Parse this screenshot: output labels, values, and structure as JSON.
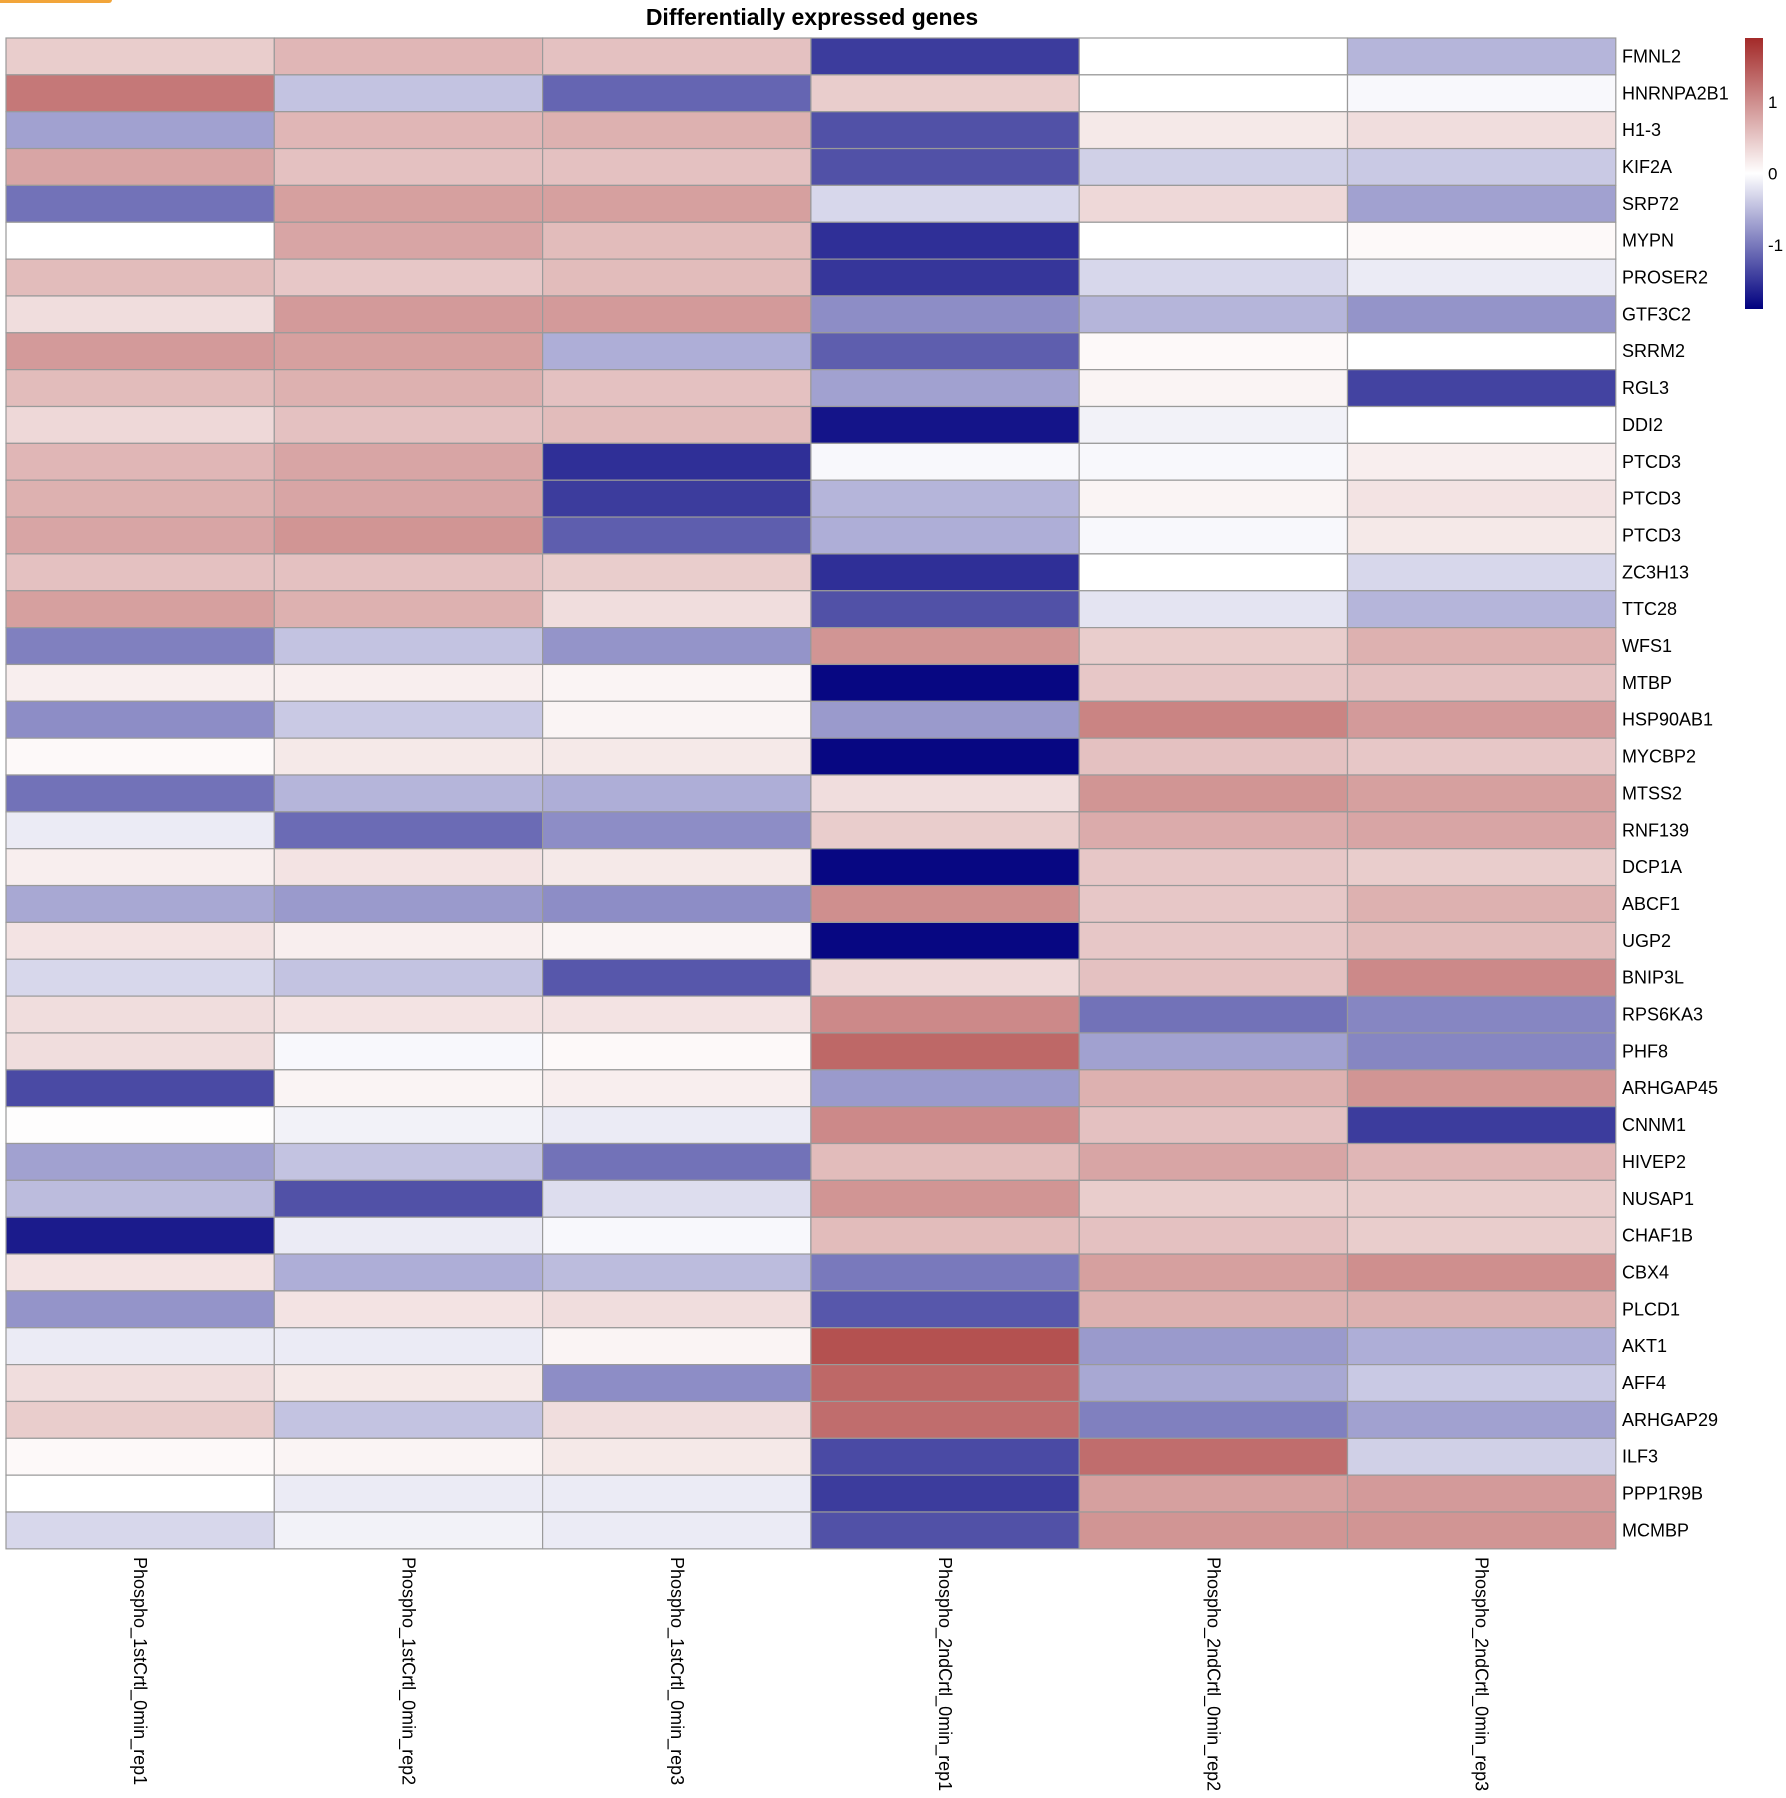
{
  "colors": {
    "low": "#00007f",
    "mid": "#ffffff",
    "high": "#a32a29",
    "cell_border": "#9a9a9a"
  },
  "chart_data": {
    "type": "heatmap",
    "title": "Differentially expressed genes",
    "columns": [
      "Phospho_1stCrtl_0min_rep1",
      "Phospho_1stCrtl_0min_rep2",
      "Phospho_1stCrtl_0min_rep3",
      "Phospho_2ndCrtl_0min_rep1",
      "Phospho_2ndCrtl_0min_rep2",
      "Phospho_2ndCrtl_0min_rep3"
    ],
    "rows": [
      "FMNL2",
      "HNRNPA2B1",
      "H1-3",
      "KIF2A",
      "SRP72",
      "MYPN",
      "PROSER2",
      "GTF3C2",
      "SRRM2",
      "RGL3",
      "DDI2",
      "PTCD3",
      "PTCD3",
      "PTCD3",
      "ZC3H13",
      "TTC28",
      "WFS1",
      "MTBP",
      "HSP90AB1",
      "MYCBP2",
      "MTSS2",
      "RNF139",
      "DCP1A",
      "ABCF1",
      "UGP2",
      "BNIP3L",
      "RPS6KA3",
      "PHF8",
      "ARHGAP45",
      "CNNM1",
      "HIVEP2",
      "NUSAP1",
      "CHAF1B",
      "CBX4",
      "PLCD1",
      "AKT1",
      "AFF4",
      "ARHGAP29",
      "ILF3",
      "PPP1R9B",
      "MCMBP"
    ],
    "values": [
      [
        0.45,
        0.65,
        0.55,
        -1.45,
        0.0,
        -0.55
      ],
      [
        1.2,
        -0.45,
        -1.15,
        0.45,
        0.0,
        -0.05
      ],
      [
        -0.7,
        0.65,
        0.7,
        -1.3,
        0.2,
        0.3
      ],
      [
        0.8,
        0.55,
        0.55,
        -1.3,
        -0.35,
        -0.4
      ],
      [
        -1.05,
        0.85,
        0.85,
        -0.3,
        0.35,
        -0.7
      ],
      [
        0.0,
        0.8,
        0.6,
        -1.55,
        0.0,
        0.05
      ],
      [
        0.6,
        0.5,
        0.6,
        -1.5,
        -0.3,
        -0.15
      ],
      [
        0.3,
        0.9,
        0.9,
        -0.85,
        -0.55,
        -0.8
      ],
      [
        0.9,
        0.85,
        -0.6,
        -1.2,
        0.05,
        0.0
      ],
      [
        0.6,
        0.7,
        0.55,
        -0.7,
        0.1,
        -1.4
      ],
      [
        0.35,
        0.55,
        0.6,
        -1.75,
        -0.1,
        0.0
      ],
      [
        0.65,
        0.8,
        -1.55,
        -0.05,
        -0.05,
        0.15
      ],
      [
        0.7,
        0.8,
        -1.45,
        -0.55,
        0.1,
        0.25
      ],
      [
        0.8,
        0.95,
        -1.2,
        -0.6,
        -0.05,
        0.2
      ],
      [
        0.55,
        0.55,
        0.45,
        -1.55,
        0.0,
        -0.3
      ],
      [
        0.85,
        0.7,
        0.3,
        -1.3,
        -0.2,
        -0.55
      ],
      [
        -0.95,
        -0.45,
        -0.8,
        0.95,
        0.45,
        0.7
      ],
      [
        0.15,
        0.15,
        0.1,
        -1.85,
        0.5,
        0.55
      ],
      [
        -0.85,
        -0.4,
        0.1,
        -0.75,
        1.1,
        0.9
      ],
      [
        0.05,
        0.2,
        0.2,
        -1.85,
        0.55,
        0.5
      ],
      [
        -1.05,
        -0.55,
        -0.6,
        0.3,
        0.95,
        0.85
      ],
      [
        -0.15,
        -1.1,
        -0.85,
        0.45,
        0.75,
        0.8
      ],
      [
        0.15,
        0.25,
        0.2,
        -1.85,
        0.5,
        0.45
      ],
      [
        -0.65,
        -0.75,
        -0.85,
        1.0,
        0.5,
        0.7
      ],
      [
        0.25,
        0.15,
        0.1,
        -1.85,
        0.5,
        0.6
      ],
      [
        -0.3,
        -0.45,
        -1.25,
        0.35,
        0.55,
        1.05
      ],
      [
        0.3,
        0.25,
        0.25,
        1.05,
        -1.05,
        -0.9
      ],
      [
        0.3,
        -0.05,
        0.05,
        1.35,
        -0.7,
        -0.9
      ],
      [
        -1.35,
        0.1,
        0.15,
        -0.75,
        0.7,
        0.95
      ],
      [
        0.02,
        -0.1,
        -0.15,
        1.05,
        0.55,
        -1.45
      ],
      [
        -0.7,
        -0.45,
        -1.05,
        0.6,
        0.8,
        0.65
      ],
      [
        -0.5,
        -1.3,
        -0.25,
        0.95,
        0.45,
        0.45
      ],
      [
        -1.7,
        -0.15,
        -0.05,
        0.6,
        0.55,
        0.45
      ],
      [
        0.25,
        -0.6,
        -0.5,
        -1.0,
        0.85,
        1.0
      ],
      [
        -0.8,
        0.25,
        0.3,
        -1.25,
        0.7,
        0.7
      ],
      [
        -0.15,
        -0.15,
        0.1,
        1.55,
        -0.75,
        -0.6
      ],
      [
        0.3,
        0.2,
        -0.85,
        1.35,
        -0.65,
        -0.4
      ],
      [
        0.45,
        -0.45,
        0.3,
        1.3,
        -0.95,
        -0.7
      ],
      [
        0.05,
        0.1,
        0.2,
        -1.35,
        1.3,
        -0.35
      ],
      [
        0.0,
        -0.15,
        -0.15,
        -1.45,
        0.85,
        0.9
      ],
      [
        -0.3,
        -0.1,
        -0.15,
        -1.3,
        0.95,
        0.95
      ]
    ],
    "legend": {
      "ticks": [
        1,
        0,
        -1
      ],
      "ticks_text": [
        "1",
        "0",
        "-1"
      ],
      "range": [
        -1.9,
        1.9
      ],
      "placement": "top-right"
    },
    "grid": true
  }
}
